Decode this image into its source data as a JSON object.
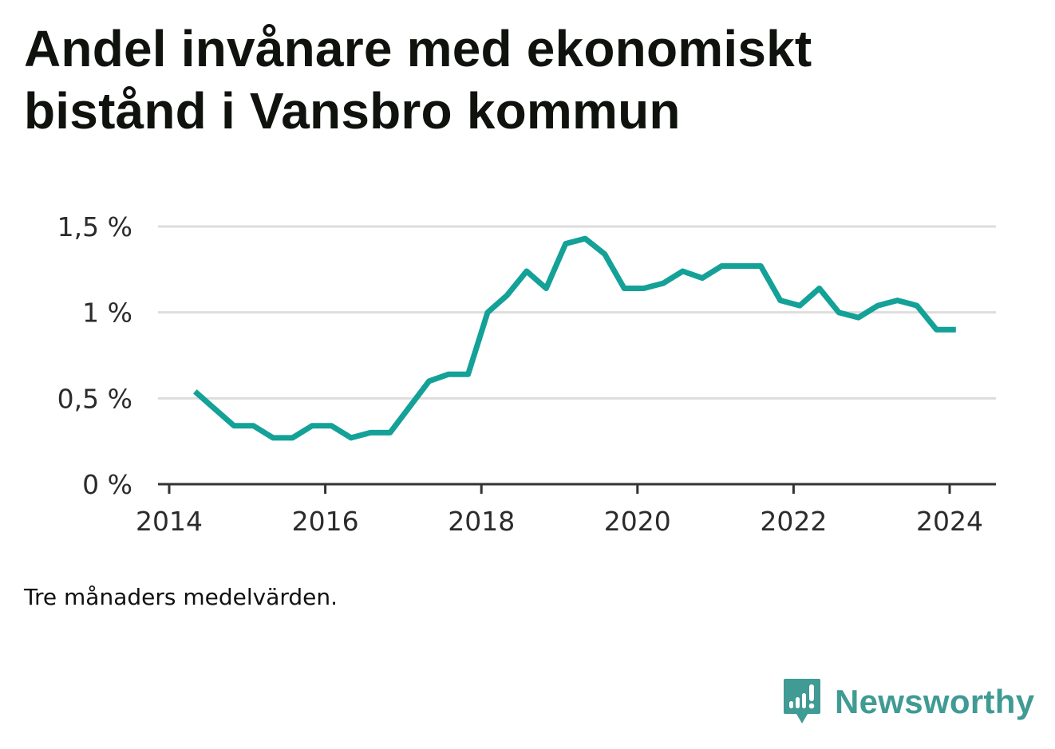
{
  "title": "Andel invånare med ekonomiskt bistånd i Vansbro kommun",
  "caption": "Tre månaders medelvärden.",
  "brand": {
    "name": "Newsworthy",
    "icon": "newsworthy-logo-icon"
  },
  "colors": {
    "line": "#14a197",
    "grid": "#dddddd",
    "axis": "#333333",
    "brand": "#3f9b93"
  },
  "chart_data": {
    "type": "line",
    "title": "Andel invånare med ekonomiskt bistånd i Vansbro kommun",
    "xlabel": "",
    "ylabel": "",
    "xlim": [
      2014,
      2024.6
    ],
    "ylim": [
      0,
      1.5
    ],
    "grid": true,
    "x_ticks": [
      2014,
      2016,
      2018,
      2020,
      2022,
      2024
    ],
    "x_tick_labels": [
      "2014",
      "2016",
      "2018",
      "2020",
      "2022",
      "2024"
    ],
    "y_ticks": [
      0,
      0.5,
      1,
      1.5
    ],
    "y_tick_labels": [
      "0 %",
      "0,5 %",
      "1 %",
      "1,5 %"
    ],
    "series": [
      {
        "x": [
          2014.33,
          2014.58,
          2014.83,
          2015.08,
          2015.33,
          2015.58,
          2015.83,
          2016.08,
          2016.33,
          2016.58,
          2016.83,
          2017.08,
          2017.33,
          2017.58,
          2017.83,
          2018.08,
          2018.33,
          2018.58,
          2018.83,
          2019.08,
          2019.33,
          2019.58,
          2019.83,
          2020.08,
          2020.33,
          2020.58,
          2020.83,
          2021.08,
          2021.33,
          2021.58,
          2021.83,
          2022.08,
          2022.33,
          2022.58,
          2022.83,
          2023.08,
          2023.33,
          2023.58,
          2023.83,
          2024.08
        ],
        "values": [
          0.54,
          0.44,
          0.34,
          0.34,
          0.27,
          0.27,
          0.34,
          0.34,
          0.27,
          0.3,
          0.3,
          0.45,
          0.6,
          0.64,
          0.64,
          1.0,
          1.1,
          1.24,
          1.14,
          1.4,
          1.43,
          1.34,
          1.14,
          1.14,
          1.17,
          1.24,
          1.2,
          1.27,
          1.27,
          1.27,
          1.07,
          1.04,
          1.14,
          1.0,
          0.97,
          1.04,
          1.07,
          1.04,
          0.9,
          0.9
        ]
      }
    ]
  }
}
